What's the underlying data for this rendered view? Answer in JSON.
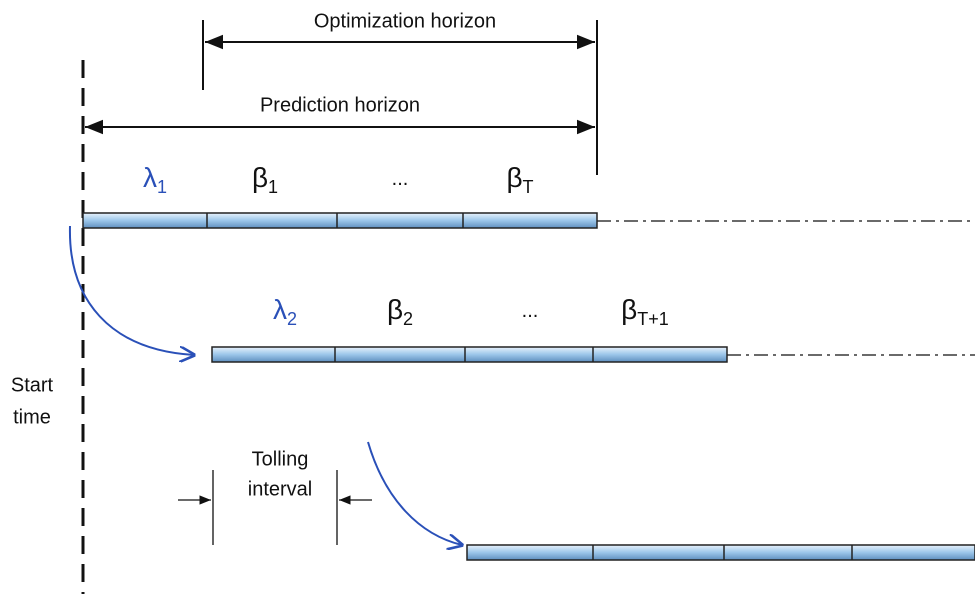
{
  "optimization_horizon": "Optimization horizon",
  "prediction_horizon": "Prediction horizon",
  "rows": [
    {
      "labels": [
        {
          "symbol": "λ",
          "sub": "1"
        },
        {
          "symbol": "β",
          "sub": "1"
        },
        {
          "symbol": "..."
        },
        {
          "symbol": "β",
          "sub": "T"
        }
      ]
    },
    {
      "labels": [
        {
          "symbol": "λ",
          "sub": "2"
        },
        {
          "symbol": "β",
          "sub": "2"
        },
        {
          "symbol": "..."
        },
        {
          "symbol": "β",
          "sub": "T+1"
        }
      ]
    }
  ],
  "start_time": [
    "Start",
    "time"
  ],
  "tolling_interval": [
    "Tolling",
    "interval"
  ]
}
